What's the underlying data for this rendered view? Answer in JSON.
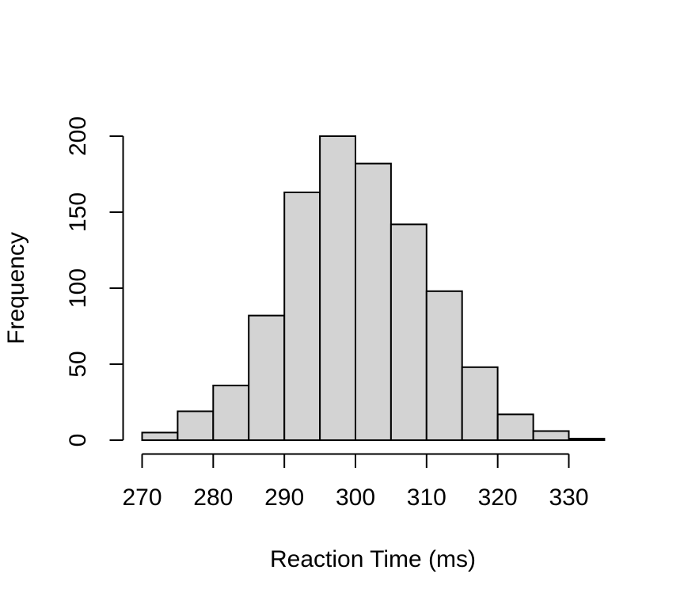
{
  "chart_data": {
    "type": "bar",
    "subtype": "histogram",
    "title": "",
    "xlabel": "Reaction Time (ms)",
    "ylabel": "Frequency",
    "bin_edges": [
      270,
      275,
      280,
      285,
      290,
      295,
      300,
      305,
      310,
      315,
      320,
      325,
      330,
      335
    ],
    "values": [
      5,
      19,
      36,
      82,
      163,
      200,
      182,
      142,
      98,
      48,
      17,
      6,
      1
    ],
    "x_ticks": [
      270,
      280,
      290,
      300,
      310,
      320,
      330
    ],
    "x_tick_labels": [
      "270",
      "280",
      "290",
      "300",
      "310",
      "320",
      "330"
    ],
    "y_ticks": [
      0,
      50,
      100,
      150,
      200
    ],
    "y_tick_labels": [
      "0",
      "50",
      "100",
      "150",
      "200"
    ],
    "xlim": [
      270,
      335
    ],
    "ylim": [
      0,
      200
    ],
    "grid": "off",
    "legend": "none",
    "bar_fill": "#d3d3d3",
    "bar_stroke": "#000000",
    "axis_color": "#000000",
    "text_color": "#000000",
    "background": "#ffffff"
  }
}
